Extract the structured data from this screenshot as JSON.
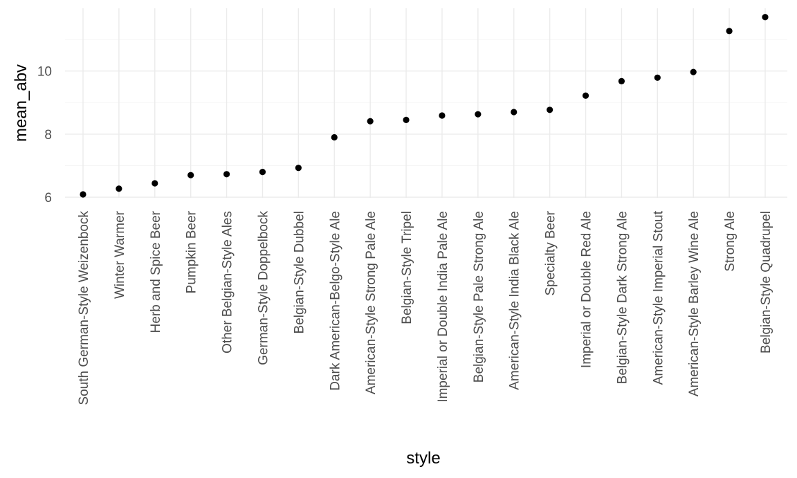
{
  "chart_data": {
    "type": "scatter",
    "xlabel": "style",
    "ylabel": "mean_abv",
    "categories": [
      "South German-Style Weizenbock",
      "Winter Warmer",
      "Herb and Spice Beer",
      "Pumpkin Beer",
      "Other Belgian-Style Ales",
      "German-Style Doppelbock",
      "Belgian-Style Dubbel",
      "Dark American-Belgo-Style Ale",
      "American-Style Strong Pale Ale",
      "Belgian-Style Tripel",
      "Imperial or Double India Pale Ale",
      "Belgian-Style Pale Strong Ale",
      "American-Style India Black Ale",
      "Specialty Beer",
      "Imperial or Double Red Ale",
      "Belgian-Style Dark Strong Ale",
      "American-Style Imperial Stout",
      "American-Style Barley Wine Ale",
      "Strong Ale",
      "Belgian-Style Quadrupel"
    ],
    "values": [
      6.09,
      6.27,
      6.44,
      6.7,
      6.73,
      6.8,
      6.93,
      7.9,
      8.41,
      8.45,
      8.59,
      8.63,
      8.7,
      8.77,
      9.22,
      9.68,
      9.79,
      9.97,
      11.27,
      11.71
    ],
    "yticks": [
      6,
      8,
      10
    ],
    "ylim": [
      5.98,
      11.99
    ],
    "grid": true,
    "legend": "none"
  }
}
